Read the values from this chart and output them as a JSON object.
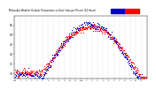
{
  "title": "Milwaukee Weather Outdoor Temperature vs Heat Index per Minute (24 Hours)",
  "color_temp": "#ff0000",
  "color_heat": "#0000cc",
  "background": "#ffffff",
  "ylim": [
    27,
    60
  ],
  "yticks": [
    30,
    35,
    40,
    45,
    50,
    55
  ],
  "num_minutes": 1440,
  "xlabel_hours": [
    "12a",
    "1",
    "2",
    "3",
    "4",
    "5",
    "6",
    "7",
    "8",
    "9",
    "10",
    "11",
    "12p",
    "1",
    "2",
    "3",
    "4",
    "5",
    "6",
    "7",
    "8",
    "9",
    "10",
    "11"
  ],
  "grid_positions": [
    0,
    60,
    120,
    180,
    240,
    300,
    360,
    420,
    480,
    540,
    600,
    660,
    720,
    780,
    840,
    900,
    960,
    1020,
    1080,
    1140,
    1200,
    1260,
    1320,
    1380
  ],
  "marker_size": 0.8,
  "dot_interval": 4
}
